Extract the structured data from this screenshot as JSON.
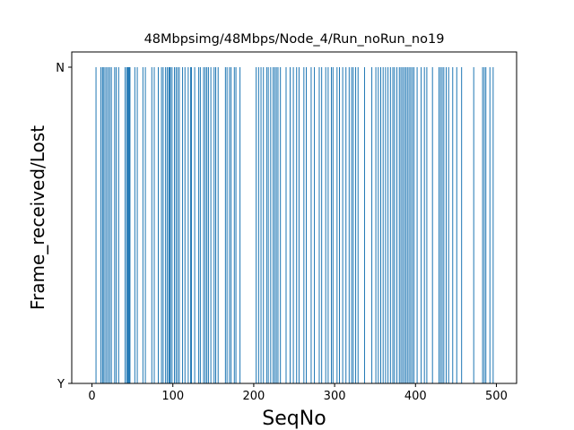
{
  "chart_data": {
    "type": "bar",
    "title": "48Mbpsimg/48Mbps/Node_4/Run_noRun_no19",
    "xlabel": "SeqNo",
    "ylabel": "Frame_received/Lost",
    "xlim": [
      -25,
      525
    ],
    "x_ticks": [
      0,
      100,
      200,
      300,
      400,
      500
    ],
    "y_categories": [
      "Y",
      "N"
    ],
    "bar_color": "#1f77b4",
    "lost_seq": [
      5,
      11,
      13,
      14,
      16,
      18,
      20,
      22,
      24,
      28,
      30,
      33,
      41,
      43,
      44,
      45,
      46,
      47,
      53,
      56,
      63,
      66,
      74,
      77,
      82,
      86,
      88,
      91,
      93,
      95,
      96,
      97,
      99,
      102,
      104,
      106,
      108,
      112,
      115,
      119,
      122,
      123,
      127,
      132,
      134,
      138,
      140,
      142,
      144,
      147,
      151,
      153,
      156,
      165,
      167,
      170,
      172,
      176,
      178,
      183,
      203,
      206,
      209,
      212,
      216,
      218,
      221,
      224,
      226,
      228,
      230,
      233,
      240,
      245,
      249,
      253,
      256,
      262,
      265,
      271,
      275,
      281,
      284,
      289,
      292,
      296,
      298,
      303,
      306,
      310,
      314,
      318,
      321,
      323,
      326,
      329,
      337,
      346,
      351,
      354,
      357,
      360,
      363,
      366,
      369,
      372,
      374,
      377,
      380,
      382,
      384,
      386,
      388,
      390,
      392,
      394,
      396,
      398,
      402,
      407,
      411,
      414,
      421,
      429,
      431,
      433,
      435,
      438,
      441,
      446,
      451,
      457,
      472,
      483,
      485,
      487,
      492,
      496
    ]
  }
}
